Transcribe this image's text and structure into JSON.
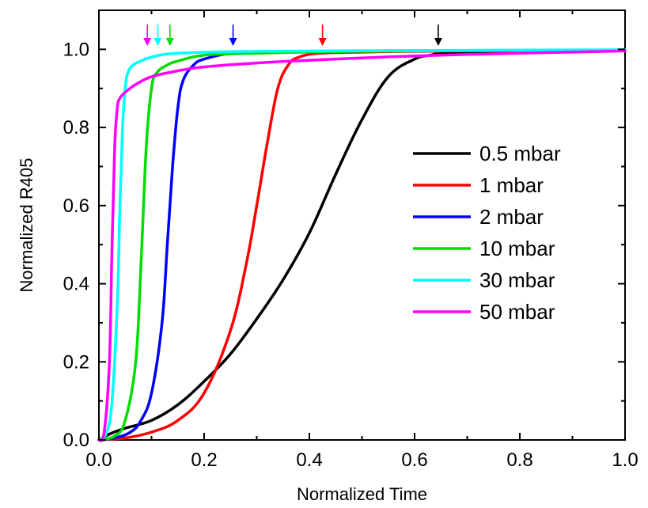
{
  "chart_data": {
    "type": "line",
    "xlabel": "Normalized Time",
    "ylabel": "Normalized R405",
    "xlim": [
      0.0,
      1.0
    ],
    "ylim": [
      0.0,
      1.1
    ],
    "x_ticks": [
      "0.0",
      "0.2",
      "0.4",
      "0.6",
      "0.8",
      "1.0"
    ],
    "y_ticks": [
      "0.0",
      "0.2",
      "0.4",
      "0.6",
      "0.8",
      "1.0"
    ],
    "legend_position": "center-right",
    "grid": false,
    "series": [
      {
        "name": "0.5 mbar",
        "color": "#000000",
        "x": [
          0,
          0.02,
          0.05,
          0.1,
          0.15,
          0.2,
          0.25,
          0.3,
          0.35,
          0.4,
          0.45,
          0.5,
          0.55,
          0.6,
          0.63,
          0.65,
          0.7,
          0.8,
          0.9,
          1.0
        ],
        "y": [
          0,
          0.015,
          0.03,
          0.05,
          0.09,
          0.15,
          0.22,
          0.31,
          0.41,
          0.53,
          0.68,
          0.82,
          0.93,
          0.975,
          0.985,
          0.99,
          0.99,
          0.993,
          0.996,
          0.998
        ],
        "arrow_x": 0.645
      },
      {
        "name": "1 mbar",
        "color": "#ff0000",
        "x": [
          0,
          0.05,
          0.1,
          0.15,
          0.2,
          0.25,
          0.28,
          0.3,
          0.32,
          0.34,
          0.36,
          0.38,
          0.42,
          0.5,
          0.6,
          0.8,
          1.0
        ],
        "y": [
          0,
          0.005,
          0.02,
          0.05,
          0.12,
          0.28,
          0.45,
          0.6,
          0.76,
          0.9,
          0.96,
          0.98,
          0.99,
          0.993,
          0.995,
          0.997,
          0.998
        ],
        "arrow_x": 0.425
      },
      {
        "name": "2 mbar",
        "color": "#0000ff",
        "x": [
          0,
          0.03,
          0.06,
          0.08,
          0.1,
          0.12,
          0.13,
          0.14,
          0.15,
          0.16,
          0.18,
          0.2,
          0.25,
          0.3,
          0.5,
          1.0
        ],
        "y": [
          0,
          0.005,
          0.02,
          0.05,
          0.12,
          0.3,
          0.5,
          0.7,
          0.85,
          0.92,
          0.96,
          0.975,
          0.99,
          0.993,
          0.996,
          0.998
        ],
        "arrow_x": 0.255
      },
      {
        "name": "10 mbar",
        "color": "#00dd00",
        "x": [
          0,
          0.03,
          0.05,
          0.07,
          0.08,
          0.09,
          0.1,
          0.11,
          0.13,
          0.15,
          0.2,
          0.3,
          0.5,
          1.0
        ],
        "y": [
          0,
          0.01,
          0.05,
          0.2,
          0.45,
          0.75,
          0.9,
          0.94,
          0.96,
          0.97,
          0.985,
          0.99,
          0.995,
          0.998
        ],
        "arrow_x": 0.135
      },
      {
        "name": "30 mbar",
        "color": "#00ffff",
        "x": [
          0,
          0.015,
          0.025,
          0.035,
          0.04,
          0.045,
          0.05,
          0.055,
          0.065,
          0.08,
          0.1,
          0.15,
          0.3,
          0.6,
          1.0
        ],
        "y": [
          0,
          0.02,
          0.1,
          0.35,
          0.6,
          0.8,
          0.9,
          0.94,
          0.96,
          0.97,
          0.98,
          0.99,
          0.995,
          0.997,
          0.999
        ],
        "arrow_x": 0.112
      },
      {
        "name": "50 mbar",
        "color": "#ff00ff",
        "x": [
          0,
          0.01,
          0.02,
          0.025,
          0.03,
          0.035,
          0.04,
          0.05,
          0.07,
          0.1,
          0.15,
          0.2,
          0.3,
          0.4,
          0.5,
          0.6,
          0.7,
          0.8,
          0.9,
          1.0
        ],
        "y": [
          0,
          0.02,
          0.2,
          0.5,
          0.75,
          0.85,
          0.875,
          0.89,
          0.91,
          0.93,
          0.945,
          0.955,
          0.965,
          0.972,
          0.978,
          0.983,
          0.987,
          0.99,
          0.993,
          0.996
        ],
        "arrow_x": 0.092
      }
    ]
  }
}
